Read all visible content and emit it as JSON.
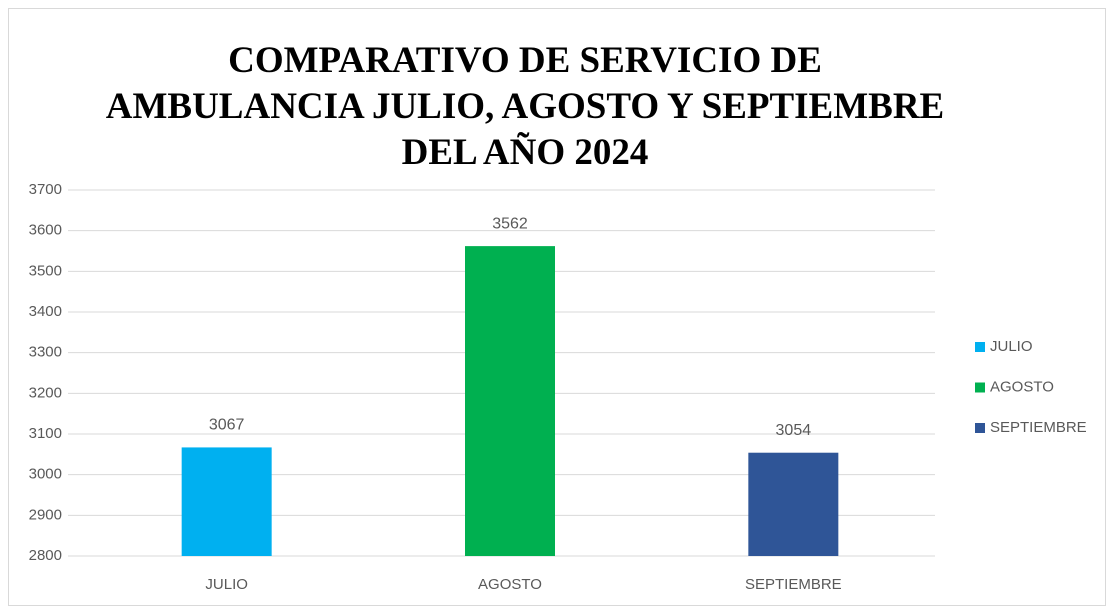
{
  "chart_data": {
    "type": "bar",
    "title": "COMPARATIVO DE SERVICIO DE AMBULANCIA JULIO, AGOSTO Y SEPTIEMBRE DEL AÑO 2024",
    "categories": [
      "JULIO",
      "AGOSTO",
      "SEPTIEMBRE"
    ],
    "values": [
      3067,
      3562,
      3054
    ],
    "colors": [
      "#00b0f0",
      "#00b050",
      "#2f5597"
    ],
    "ylim": [
      2800,
      3700
    ],
    "yticks": [
      2800,
      2900,
      3000,
      3100,
      3200,
      3300,
      3400,
      3500,
      3600,
      3700
    ],
    "grid": true,
    "legend": "right"
  }
}
